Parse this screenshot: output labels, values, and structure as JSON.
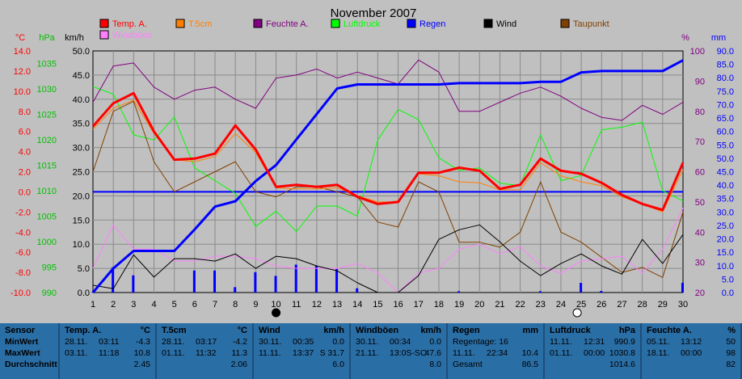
{
  "title": "November 2007",
  "axes": {
    "temp_unit": "°C",
    "hpa_unit": "hPa",
    "kmh_unit": "km/h",
    "pct_unit": "%",
    "mm_unit": "mm",
    "temp_ticks": [
      "14.0",
      "12.0",
      "10.0",
      "8.0",
      "6.0",
      "4.0",
      "2.0",
      "0.0",
      "-2.0",
      "-4.0",
      "-6.0",
      "-8.0",
      "-10.0"
    ],
    "hpa_ticks": [
      "1035",
      "1030",
      "1025",
      "1020",
      "1015",
      "1010",
      "1005",
      "1000",
      "995",
      "990"
    ],
    "kmh_ticks": [
      "50.0",
      "45.0",
      "40.0",
      "35.0",
      "30.0",
      "25.0",
      "20.0",
      "15.0",
      "10.0",
      "5.0",
      "0.0"
    ],
    "pct_ticks": [
      "100",
      "90",
      "80",
      "70",
      "60",
      "50",
      "40",
      "30",
      "20"
    ],
    "mm_ticks": [
      "90.0",
      "85.0",
      "80.0",
      "75.0",
      "70.0",
      "65.0",
      "60.0",
      "55.0",
      "50.0",
      "45.0",
      "40.0",
      "35.0",
      "30.0",
      "25.0",
      "20.0",
      "15.0",
      "10.0",
      "5.0",
      "0.0"
    ],
    "x_ticks": [
      "1",
      "2",
      "3",
      "4",
      "5",
      "6",
      "7",
      "8",
      "9",
      "10",
      "11",
      "12",
      "13",
      "14",
      "15",
      "16",
      "17",
      "18",
      "19",
      "20",
      "21",
      "22",
      "23",
      "24",
      "25",
      "26",
      "27",
      "28",
      "29",
      "30"
    ]
  },
  "legend": [
    {
      "label": "Temp. A.",
      "color": "#ff0000"
    },
    {
      "label": "T.5cm",
      "color": "#ff8000"
    },
    {
      "label": "Feuchte A.",
      "color": "#800080"
    },
    {
      "label": "Luftdruck",
      "color": "#00ff00"
    },
    {
      "label": "Regen",
      "color": "#0000ff"
    },
    {
      "label": "Wind",
      "color": "#000000"
    },
    {
      "label": "Taupunkt",
      "color": "#804000"
    },
    {
      "label": "Windböen",
      "color": "#ff80ff"
    }
  ],
  "chart_data": {
    "type": "line",
    "title": "November 2007",
    "x": [
      1,
      2,
      3,
      4,
      5,
      6,
      7,
      8,
      9,
      10,
      11,
      12,
      13,
      14,
      15,
      16,
      17,
      18,
      19,
      20,
      21,
      22,
      23,
      24,
      25,
      26,
      27,
      28,
      29,
      30
    ],
    "xlim": [
      1,
      30
    ],
    "axes_ranges": {
      "temperature_c": [
        -10,
        14
      ],
      "pressure_hpa": [
        990,
        1037.5
      ],
      "speed_kmh": [
        0,
        50
      ],
      "humidity_pct": [
        20,
        100
      ],
      "rain_mm": [
        0,
        90
      ]
    },
    "grid": true,
    "series": [
      {
        "name": "Temp. A.",
        "axis": "temperature_c",
        "color": "#ff0000",
        "values": [
          6.5,
          8.8,
          9.8,
          6.0,
          3.2,
          3.3,
          3.8,
          6.6,
          4.2,
          0.5,
          0.7,
          0.5,
          0.7,
          -0.5,
          -1.2,
          -1.0,
          1.9,
          1.9,
          2.4,
          2.1,
          0.3,
          0.7,
          3.3,
          2.1,
          1.8,
          0.9,
          -0.3,
          -1.2,
          -1.8,
          2.9
        ]
      },
      {
        "name": "T.5cm",
        "axis": "temperature_c",
        "color": "#ff8000",
        "values": [
          6.2,
          8.3,
          9.1,
          5.8,
          3.2,
          3.0,
          3.5,
          5.8,
          3.9,
          0.4,
          0.3,
          0.3,
          0.4,
          -0.4,
          -1.0,
          -1.0,
          1.8,
          1.6,
          1.0,
          0.9,
          0.2,
          0.2,
          2.9,
          1.6,
          1.0,
          0.6,
          -0.5,
          -1.2,
          -2.0,
          2.2
        ]
      },
      {
        "name": "Feuchte A.",
        "axis": "humidity_pct",
        "color": "#800080",
        "values": [
          83,
          95,
          96,
          88,
          84,
          87,
          88,
          84,
          81,
          91,
          92,
          94,
          91,
          93,
          91,
          89,
          97,
          93,
          80,
          80,
          83,
          86,
          88,
          85,
          81,
          78,
          77,
          82,
          79,
          83
        ]
      },
      {
        "name": "Luftdruck",
        "axis": "pressure_hpa",
        "color": "#00ff00",
        "values": [
          1030.5,
          1029.0,
          1021.0,
          1020.0,
          1024.5,
          1014.5,
          1012.0,
          1009.5,
          1003.0,
          1006.0,
          1002.0,
          1007.0,
          1007.0,
          1005.0,
          1020.0,
          1026.0,
          1024.0,
          1016.5,
          1014.0,
          1014.5,
          1011.5,
          1011.0,
          1021.0,
          1012.0,
          1013.0,
          1022.0,
          1022.5,
          1023.5,
          1010.0,
          1008.0
        ]
      },
      {
        "name": "Regen",
        "axis": "rain_mm",
        "color": "#0000ff",
        "values": [
          0.0,
          9.0,
          15.5,
          15.5,
          15.5,
          23.5,
          32.0,
          34.0,
          41.5,
          47.5,
          57.0,
          66.5,
          76.0,
          77.5,
          77.5,
          77.5,
          77.5,
          77.5,
          78.0,
          78.0,
          78.0,
          78.0,
          78.5,
          78.5,
          82.0,
          82.5,
          82.5,
          82.5,
          82.5,
          86.5
        ]
      },
      {
        "name": "Wind",
        "axis": "speed_kmh",
        "color": "#000000",
        "values": [
          1.5,
          0.8,
          7.8,
          3.2,
          7.0,
          7.0,
          6.5,
          8.0,
          5.0,
          7.5,
          7.0,
          5.5,
          4.5,
          2.0,
          0.0,
          0.0,
          3.5,
          11.0,
          13.0,
          14.0,
          10.5,
          6.5,
          3.5,
          6.0,
          8.0,
          5.5,
          3.8,
          11.0,
          6.0,
          12.0
        ]
      },
      {
        "name": "Taupunkt",
        "axis": "temperature_c",
        "color": "#804000",
        "values": [
          2.0,
          8.0,
          9.0,
          3.0,
          0.0,
          1.0,
          2.0,
          3.0,
          0.0,
          -0.5,
          0.5,
          0.5,
          0.0,
          -0.5,
          -3.0,
          -3.5,
          1.0,
          0.0,
          -5.0,
          -5.0,
          -5.5,
          -4.0,
          1.0,
          -4.0,
          -5.0,
          -6.5,
          -8.0,
          -7.5,
          -8.5,
          -2.0
        ]
      },
      {
        "name": "Windböen",
        "axis": "speed_kmh",
        "color": "#ff80ff",
        "values": [
          5.0,
          14.0,
          9.0,
          9.0,
          6.5,
          6.5,
          7.5,
          7.5,
          7.0,
          5.5,
          5.0,
          5.0,
          5.0,
          6.0,
          4.0,
          0.0,
          4.0,
          5.0,
          9.0,
          10.0,
          8.0,
          9.5,
          5.5,
          4.0,
          6.5,
          7.0,
          7.5,
          4.0,
          9.0,
          17.5
        ]
      },
      {
        "name": "Regen (Tag)",
        "axis": "rain_mm",
        "color": "#0000ff",
        "kind": "bar",
        "values": [
          0.2,
          9.4,
          6.4,
          0.0,
          0.0,
          8.2,
          8.2,
          2.0,
          7.6,
          6.2,
          10.4,
          10.0,
          8.8,
          1.6,
          0.0,
          0.0,
          0.0,
          0.0,
          0.5,
          0.0,
          0.0,
          0.0,
          0.5,
          0.0,
          3.6,
          0.6,
          0.0,
          0.0,
          0.0,
          3.6
        ]
      }
    ],
    "reference_line": {
      "axis": "temperature_c",
      "value": 0.0,
      "color": "#0000ff"
    },
    "moon_markers": [
      {
        "day": 10,
        "phase": "new"
      },
      {
        "day": 24.8,
        "phase": "full"
      }
    ]
  },
  "summary": {
    "row_labels": {
      "title": "Sensor",
      "min": "MinWert",
      "max": "MaxWert",
      "avg": "Durchschnitt"
    },
    "columns": [
      {
        "name": "Temp. A.",
        "unit": "°C",
        "min_date": "28.11.",
        "min_time": "03:11",
        "min_val": "-4.3",
        "max_date": "03.11.",
        "max_time": "11:18",
        "max_val": "10.8",
        "avg": "2.45"
      },
      {
        "name": "T.5cm",
        "unit": "°C",
        "min_date": "28.11.",
        "min_time": "03:17",
        "min_val": "-4.2",
        "max_date": "01.11.",
        "max_time": "11:32",
        "max_val": "11.3",
        "avg": "2.06"
      },
      {
        "name": "Wind",
        "unit": "km/h",
        "min_date": "30.11.",
        "min_time": "00:35",
        "min_val": "0.0",
        "max_date": "11.11.",
        "max_time": "13:37",
        "max_val": "S 31.7",
        "avg": "6.0"
      },
      {
        "name": "Windböen",
        "unit": "km/h",
        "min_date": "30.11.",
        "min_time": "00:34",
        "min_val": "0.0",
        "max_date": "21.11.",
        "max_time": "13:0S-SO",
        "max_val": "47.6",
        "avg": "8.0"
      },
      {
        "name": "Regen",
        "unit": "mm",
        "min_date": "Regentage: 16",
        "min_time": "",
        "min_val": "",
        "max_date": "11.11.",
        "max_time": "22:34",
        "max_val": "10.4",
        "avg_label": "Gesamt",
        "avg": "86.5"
      },
      {
        "name": "Luftdruck",
        "unit": "hPa",
        "min_date": "11.11.",
        "min_time": "12:31",
        "min_val": "990.9",
        "max_date": "01.11.",
        "max_time": "00:00",
        "max_val": "1030.8",
        "avg": "1014.6"
      },
      {
        "name": "Feuchte A.",
        "unit": "%",
        "min_date": "05.11.",
        "min_time": "13:12",
        "min_val": "50",
        "max_date": "18.11.",
        "max_time": "00:00",
        "max_val": "98",
        "avg": "82"
      }
    ]
  }
}
